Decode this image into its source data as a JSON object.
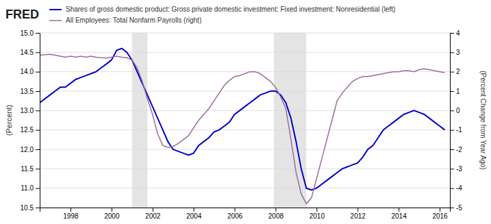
{
  "chart_data": {
    "type": "line",
    "annotations": [
      "FRED"
    ],
    "ylabel": "(Percent)",
    "y2label": "(Percent Change from Year Ago)",
    "x": [
      1996.5,
      1997.0,
      1997.25,
      1997.5,
      1997.75,
      1998.0,
      1998.25,
      1998.5,
      1998.75,
      1999.0,
      1999.25,
      1999.5,
      1999.75,
      2000.0,
      2000.25,
      2000.5,
      2000.75,
      2001.0,
      2001.25,
      2001.5,
      2001.75,
      2002.0,
      2002.25,
      2002.5,
      2002.75,
      2003.0,
      2003.25,
      2003.5,
      2003.75,
      2004.0,
      2004.25,
      2004.5,
      2004.75,
      2005.0,
      2005.25,
      2005.5,
      2005.75,
      2006.0,
      2006.25,
      2006.5,
      2006.75,
      2007.0,
      2007.25,
      2007.5,
      2007.75,
      2008.0,
      2008.25,
      2008.5,
      2008.75,
      2009.0,
      2009.25,
      2009.5,
      2009.75,
      2010.0,
      2010.25,
      2010.5,
      2010.75,
      2011.0,
      2011.25,
      2011.5,
      2011.75,
      2012.0,
      2012.25,
      2012.5,
      2012.75,
      2013.0,
      2013.25,
      2013.5,
      2013.75,
      2014.0,
      2014.25,
      2014.5,
      2014.75,
      2015.0,
      2015.25,
      2015.5,
      2015.75,
      2016.0,
      2016.25
    ],
    "series": [
      {
        "name": "Shares of gross domestic product: Gross private domestic investment: Fixed investment: Nonresidential (left)",
        "color": "#0000cc",
        "values": [
          13.2,
          13.4,
          13.5,
          13.6,
          13.6,
          13.7,
          13.8,
          13.85,
          13.9,
          13.95,
          14.0,
          14.1,
          14.2,
          14.3,
          14.55,
          14.6,
          14.5,
          14.3,
          14.0,
          13.7,
          13.4,
          13.1,
          12.8,
          12.5,
          12.2,
          12.0,
          11.95,
          11.9,
          11.85,
          11.9,
          12.1,
          12.2,
          12.3,
          12.45,
          12.5,
          12.6,
          12.7,
          12.9,
          13.0,
          13.1,
          13.2,
          13.3,
          13.4,
          13.45,
          13.5,
          13.5,
          13.4,
          13.2,
          12.8,
          12.2,
          11.5,
          11.0,
          10.95,
          11.0,
          11.1,
          11.2,
          11.3,
          11.4,
          11.5,
          11.55,
          11.6,
          11.65,
          11.8,
          12.0,
          12.1,
          12.3,
          12.5,
          12.6,
          12.7,
          12.8,
          12.9,
          12.95,
          13.0,
          12.95,
          12.9,
          12.8,
          12.7,
          12.6,
          12.5
        ]
      },
      {
        "name": "All Employees: Total Nonfarm Payrolls (right)",
        "color": "#9b6b9b",
        "axis": "y2",
        "values": [
          2.85,
          2.9,
          2.85,
          2.8,
          2.75,
          2.8,
          2.75,
          2.8,
          2.75,
          2.8,
          2.75,
          2.72,
          2.7,
          2.75,
          2.8,
          2.75,
          2.72,
          2.6,
          2.2,
          1.5,
          0.6,
          -0.2,
          -1.2,
          -1.8,
          -1.9,
          -1.85,
          -1.7,
          -1.5,
          -1.3,
          -0.9,
          -0.5,
          -0.2,
          0.1,
          0.5,
          0.9,
          1.3,
          1.55,
          1.75,
          1.8,
          1.9,
          2.0,
          2.0,
          1.9,
          1.7,
          1.5,
          1.2,
          0.7,
          0.1,
          -1.5,
          -3.2,
          -4.3,
          -4.8,
          -4.5,
          -3.5,
          -2.5,
          -1.5,
          -0.5,
          0.5,
          0.9,
          1.2,
          1.5,
          1.65,
          1.75,
          1.75,
          1.8,
          1.85,
          1.9,
          1.95,
          2.0,
          2.0,
          2.05,
          2.05,
          2.0,
          2.1,
          2.15,
          2.1,
          2.05,
          2.0,
          1.95
        ]
      }
    ],
    "shaded_periods": [
      [
        2001.0,
        2001.75
      ],
      [
        2007.917,
        2009.5
      ]
    ],
    "xlim": [
      1996.5,
      2016.5
    ],
    "xticks": [
      1998,
      2000,
      2002,
      2004,
      2006,
      2008,
      2010,
      2012,
      2014,
      2016
    ],
    "ylim": [
      10.5,
      15.0
    ],
    "yticks": [
      10.5,
      {
        "value": 11.0,
        "label": "11.0"
      },
      11.5,
      {
        "value": 12.0,
        "label": "12.0"
      },
      12.5,
      {
        "value": 13.0,
        "label": "13.0"
      },
      13.5,
      {
        "value": 14.0,
        "label": "14.0"
      },
      14.5,
      {
        "value": 15.0,
        "label": "15.0"
      }
    ],
    "y2lim": [
      -5,
      4
    ],
    "y2ticks": [
      -5,
      -4,
      -3,
      -2,
      -1,
      0,
      1,
      2,
      3,
      4
    ],
    "grid": true,
    "legend": "top"
  }
}
